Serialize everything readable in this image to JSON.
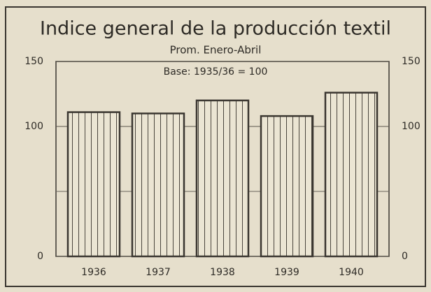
{
  "chart_data": {
    "type": "bar",
    "title": "Indice general de la producción textil",
    "subtitle": "Prom. Enero-Abril",
    "annotation": "Base: 1935/36 = 100",
    "categories": [
      "1936",
      "1937",
      "1938",
      "1939",
      "1940"
    ],
    "values": [
      111,
      110,
      120,
      108,
      126
    ],
    "color": "#3a3630",
    "ylim": [
      0,
      150
    ],
    "yticks": [
      0,
      100,
      150
    ],
    "minor_yticks": [
      50
    ],
    "grid": true
  }
}
